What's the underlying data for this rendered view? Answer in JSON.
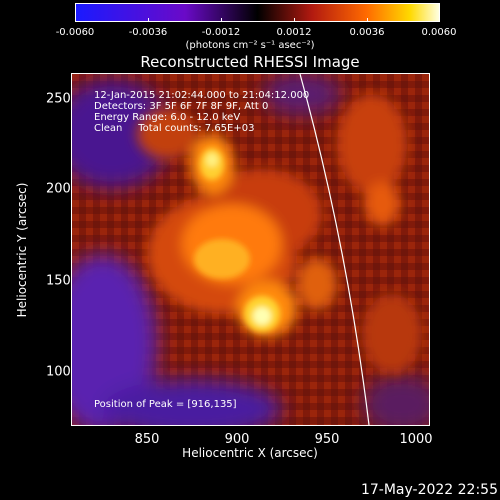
{
  "colorbar": {
    "ticks": [
      "-0.0060",
      "-0.0036",
      "-0.0012",
      "0.0012",
      "0.0036",
      "0.0060"
    ],
    "units": "(photons cm⁻² s⁻¹ asec⁻²)"
  },
  "title": "Reconstructed RHESSI Image",
  "info": {
    "time": "12-Jan-2015 21:02:44.000 to 21:04:12.000",
    "detectors": "Detectors: 3F 5F 6F 7F 8F 9F, Att 0",
    "energy": "Energy Range: 6.0 - 12.0 keV",
    "clean": "Clean     Total counts: 7.65E+03",
    "peak": "Position of Peak = [916,135]"
  },
  "axes": {
    "xlabel": "Heliocentric X (arcsec)",
    "ylabel": "Heliocentric Y (arcsec)",
    "xticks": [
      "850",
      "900",
      "950",
      "1000"
    ],
    "yticks": [
      "250",
      "200",
      "150",
      "100"
    ]
  },
  "footer": "17-May-2022 22:55",
  "colors": {
    "background": "#000000",
    "text": "#ffffff"
  }
}
